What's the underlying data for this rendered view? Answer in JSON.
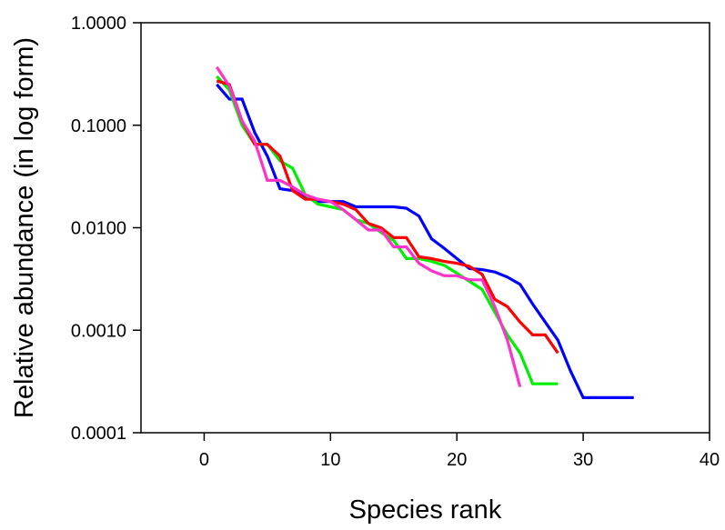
{
  "chart_data": {
    "type": "line",
    "xlabel": "Species rank",
    "ylabel": "Relative abundance (in log form)",
    "xlim": [
      -5,
      40
    ],
    "ylim": [
      0.0001,
      1.0
    ],
    "yscale": "log",
    "grid": false,
    "legend": "none",
    "x_ticks": [
      0,
      10,
      20,
      30,
      40
    ],
    "x_tick_labels": [
      "0",
      "10",
      "20",
      "30",
      "40"
    ],
    "y_ticks": [
      0.0001,
      0.001,
      0.01,
      0.1,
      1.0
    ],
    "y_tick_labels": [
      "0.0001",
      "0.0010",
      "0.0100",
      "0.1000",
      "1.0000"
    ],
    "series": [
      {
        "color": "#0000ff",
        "x": [
          1,
          2,
          3,
          4,
          5,
          6,
          7,
          8,
          9,
          10,
          11,
          12,
          13,
          14,
          15,
          16,
          17,
          18,
          19,
          20,
          21,
          22,
          23,
          24,
          25,
          26,
          27,
          28,
          29,
          30,
          31,
          32,
          33,
          34
        ],
        "y": [
          0.25,
          0.18,
          0.18,
          0.085,
          0.05,
          0.024,
          0.023,
          0.02,
          0.018,
          0.018,
          0.018,
          0.016,
          0.016,
          0.016,
          0.016,
          0.0155,
          0.013,
          0.0078,
          0.0063,
          0.005,
          0.004,
          0.0039,
          0.0037,
          0.0033,
          0.0028,
          0.0018,
          0.0012,
          0.0008,
          0.0004,
          0.00022,
          0.00022,
          0.00022,
          0.00022,
          0.00022
        ]
      },
      {
        "color": "#00ee00",
        "x": [
          1,
          2,
          3,
          4,
          5,
          6,
          7,
          8,
          9,
          10,
          11,
          12,
          13,
          14,
          15,
          16,
          17,
          18,
          19,
          20,
          21,
          22,
          23,
          24,
          25,
          26,
          27,
          28
        ],
        "y": [
          0.3,
          0.22,
          0.1,
          0.065,
          0.065,
          0.045,
          0.038,
          0.021,
          0.017,
          0.016,
          0.015,
          0.012,
          0.011,
          0.009,
          0.0075,
          0.005,
          0.005,
          0.0047,
          0.0043,
          0.0036,
          0.003,
          0.0025,
          0.0015,
          0.0009,
          0.0006,
          0.0003,
          0.0003,
          0.0003
        ]
      },
      {
        "color": "#ff0000",
        "x": [
          1,
          2,
          3,
          4,
          5,
          6,
          7,
          8,
          9,
          10,
          11,
          12,
          13,
          14,
          15,
          16,
          17,
          18,
          19,
          20,
          21,
          22,
          23,
          24,
          25,
          26,
          27,
          28
        ],
        "y": [
          0.27,
          0.25,
          0.11,
          0.065,
          0.065,
          0.05,
          0.023,
          0.019,
          0.019,
          0.018,
          0.017,
          0.015,
          0.011,
          0.01,
          0.008,
          0.008,
          0.0052,
          0.005,
          0.0047,
          0.0045,
          0.0042,
          0.0035,
          0.002,
          0.0017,
          0.0012,
          0.0009,
          0.0009,
          0.0006
        ]
      },
      {
        "color": "#ff33cc",
        "x": [
          1,
          2,
          3,
          4,
          5,
          6,
          7,
          8,
          9,
          10,
          11,
          12,
          13,
          14,
          15,
          16,
          17,
          18,
          19,
          20,
          21,
          22,
          23,
          24,
          25
        ],
        "y": [
          0.37,
          0.24,
          0.11,
          0.07,
          0.029,
          0.029,
          0.025,
          0.021,
          0.019,
          0.018,
          0.015,
          0.012,
          0.0095,
          0.0095,
          0.0065,
          0.0065,
          0.0045,
          0.0038,
          0.0034,
          0.0034,
          0.0031,
          0.0031,
          0.0017,
          0.0008,
          0.00028
        ]
      }
    ]
  }
}
